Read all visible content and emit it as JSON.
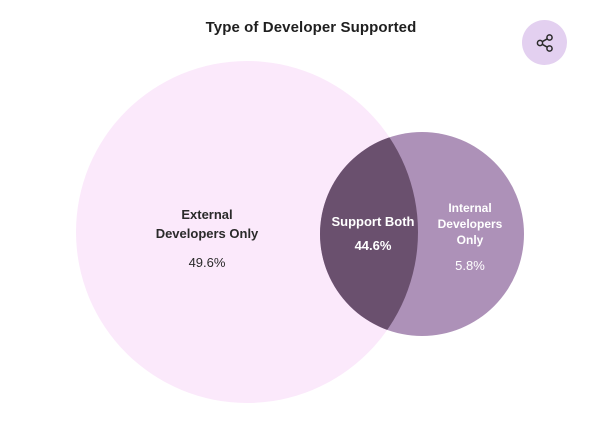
{
  "title": "Type of Developer Supported",
  "share": {
    "icon": "share-icon"
  },
  "colors": {
    "external": "#fbe9fb",
    "internal": "#ad91b8",
    "overlap": "#6a506e",
    "share_bg": "#e3d0f0"
  },
  "chart_data": {
    "type": "venn",
    "title": "Type of Developer Supported",
    "sets": [
      {
        "label_lines": [
          "External",
          "Developers Only"
        ],
        "value": "49.6%",
        "percent": 49.6
      },
      {
        "label_lines": [
          "Internal",
          "Developers",
          "Only"
        ],
        "value": "5.8%",
        "percent": 5.8
      }
    ],
    "intersection": {
      "label_lines": [
        "Support Both"
      ],
      "value": "44.6%",
      "percent": 44.6
    }
  }
}
